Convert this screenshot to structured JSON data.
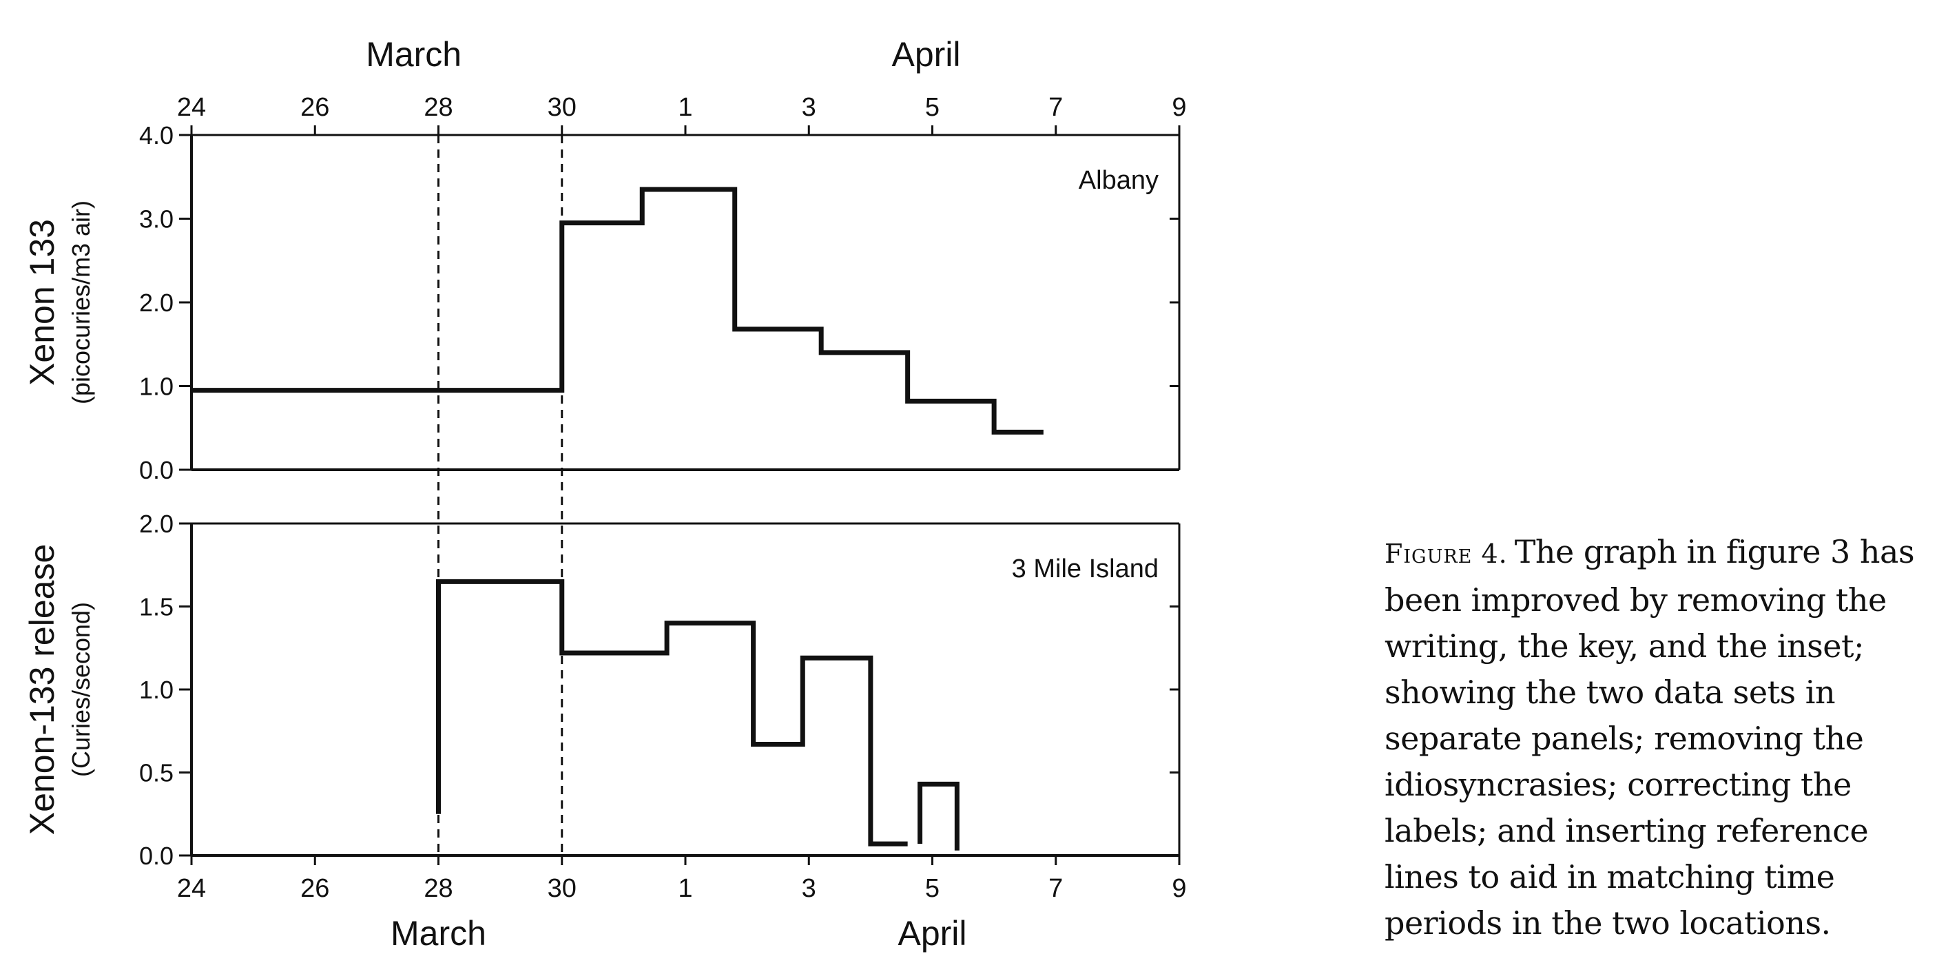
{
  "chart_data": [
    {
      "type": "line",
      "subtitle": "Albany",
      "ylabel": "Xenon 133",
      "ylabel_units": "(picocuries/m3 air)",
      "ylim": [
        0,
        4
      ],
      "yticks": [
        "0.0",
        "1.0",
        "2.0",
        "3.0",
        "4.0"
      ],
      "ytick_values": [
        0,
        1,
        2,
        3,
        4
      ],
      "x_axis_position": "top",
      "xlim": [
        0,
        16
      ],
      "xtick_labels": [
        "24",
        "26",
        "28",
        "30",
        "1",
        "3",
        "5",
        "7",
        "9"
      ],
      "xtick_values": [
        0,
        2,
        4,
        6,
        8,
        10,
        12,
        14,
        16
      ],
      "month_labels": [
        {
          "text": "March",
          "at": 3.6
        },
        {
          "text": "April",
          "at": 11.9
        }
      ],
      "reference_lines_x": [
        4,
        6
      ],
      "series": [
        {
          "steps": [
            {
              "x0": 0,
              "x1": 6,
              "y": 0.95
            },
            {
              "x0": 6,
              "x1": 7.3,
              "y": 2.95
            },
            {
              "x0": 7.3,
              "x1": 8.8,
              "y": 3.35
            },
            {
              "x0": 8.8,
              "x1": 10.2,
              "y": 1.68
            },
            {
              "x0": 10.2,
              "x1": 11.6,
              "y": 1.4
            },
            {
              "x0": 11.6,
              "x1": 13,
              "y": 0.82
            },
            {
              "x0": 13,
              "x1": 13.8,
              "y": 0.45
            }
          ]
        }
      ]
    },
    {
      "type": "line",
      "subtitle": "3 Mile Island",
      "ylabel": "Xenon-133 release",
      "ylabel_units": "(Curies/second)",
      "ylim": [
        0,
        2
      ],
      "yticks": [
        "0.0",
        "0.5",
        "1.0",
        "1.5",
        "2.0"
      ],
      "ytick_values": [
        0,
        0.5,
        1,
        1.5,
        2
      ],
      "x_axis_position": "bottom",
      "xlim": [
        0,
        16
      ],
      "xtick_labels": [
        "24",
        "26",
        "28",
        "30",
        "1",
        "3",
        "5",
        "7",
        "9"
      ],
      "xtick_values": [
        0,
        2,
        4,
        6,
        8,
        10,
        12,
        14,
        16
      ],
      "month_labels": [
        {
          "text": "March",
          "at": 4
        },
        {
          "text": "April",
          "at": 12
        }
      ],
      "reference_lines_x": [
        4,
        6
      ],
      "series": [
        {
          "steps": [
            {
              "x0": 4,
              "x1": 6,
              "y": 1.65
            },
            {
              "x0": 6,
              "x1": 7.7,
              "y": 1.22
            },
            {
              "x0": 7.7,
              "x1": 9.1,
              "y": 1.4
            },
            {
              "x0": 9.1,
              "x1": 9.9,
              "y": 0.67
            },
            {
              "x0": 9.9,
              "x1": 11,
              "y": 1.19
            },
            {
              "x0": 11,
              "x1": 11.6,
              "y": 0.07
            },
            {
              "x0": 11.8,
              "x1": 12.4,
              "y": 0.43
            }
          ],
          "start_rise_from": 0.25,
          "end_drop_to": 0.03
        }
      ]
    }
  ],
  "caption": {
    "label": "Figure 4.",
    "text": "The graph in figure 3 has been improved by removing the writing, the key, and the inset; showing the two data sets in separate panels; removing the idiosyncrasies; correcting the labels; and inserting reference lines to aid in matching time periods in the two locations."
  }
}
